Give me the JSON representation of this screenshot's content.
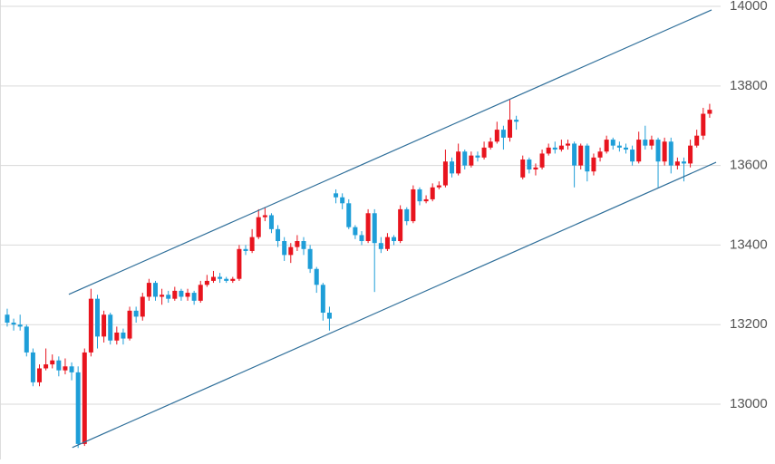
{
  "chart_data": {
    "type": "candlestick",
    "up_color": "#e8141e",
    "down_color": "#1e9ed8",
    "trendline_color": "#2f6f9a",
    "ylim": [
      12861,
      14016
    ],
    "yticks": [
      13000,
      13200,
      13400,
      13600,
      13800,
      14000
    ],
    "grid": true,
    "xlim": [
      -1.12,
      110.7
    ],
    "open": [
      13225,
      13205,
      13200,
      13195,
      13130,
      13055,
      13090,
      13100,
      13110,
      13085,
      13095,
      13080,
      12900,
      13130,
      13265,
      13170,
      13225,
      13160,
      13180,
      13165,
      13235,
      13220,
      13270,
      13305,
      13270,
      13275,
      13265,
      13285,
      13270,
      13280,
      13260,
      13300,
      13310,
      13320,
      13315,
      13310,
      13315,
      13390,
      13385,
      13420,
      13470,
      13475,
      13440,
      13410,
      13375,
      13395,
      13410,
      13390,
      13340,
      13300,
      13230,
      13530,
      13520,
      13505,
      13445,
      13425,
      13410,
      13480,
      13405,
      13390,
      13420,
      13410,
      13490,
      13460,
      13540,
      13510,
      13515,
      13545,
      13550,
      13610,
      13580,
      13635,
      13600,
      13625,
      13620,
      13645,
      13660,
      13690,
      13670,
      13715,
      13570,
      13615,
      13590,
      13595,
      13630,
      13645,
      13640,
      13650,
      13655,
      13600,
      13650,
      13585,
      13620,
      13635,
      13665,
      13650,
      13645,
      13640,
      13610,
      13665,
      13650,
      13665,
      13610,
      13660,
      13600,
      13610,
      13605,
      13650,
      13675,
      13730
    ],
    "high": [
      13240,
      13215,
      13225,
      13200,
      13140,
      13100,
      13140,
      13125,
      13120,
      13115,
      13105,
      13095,
      13140,
      13290,
      13275,
      13235,
      13230,
      13195,
      13190,
      13245,
      13245,
      13280,
      13315,
      13310,
      13290,
      13285,
      13295,
      13290,
      13290,
      13285,
      13310,
      13325,
      13335,
      13330,
      13320,
      13320,
      13400,
      13400,
      13440,
      13490,
      13495,
      13480,
      13450,
      13420,
      13405,
      13425,
      13420,
      13400,
      13345,
      13305,
      13245,
      13540,
      13530,
      13515,
      13450,
      13435,
      13490,
      13490,
      13420,
      13430,
      13425,
      13500,
      13495,
      13550,
      13545,
      13525,
      13555,
      13560,
      13640,
      13620,
      13655,
      13640,
      13635,
      13635,
      13660,
      13670,
      13710,
      13700,
      13765,
      13725,
      13625,
      13620,
      13605,
      13640,
      13655,
      13660,
      13665,
      13665,
      13660,
      13655,
      13655,
      13630,
      13645,
      13675,
      13670,
      13660,
      13655,
      13650,
      13685,
      13700,
      13675,
      13670,
      13670,
      13670,
      13620,
      13620,
      13665,
      13690,
      13745,
      13755
    ],
    "low": [
      13195,
      13185,
      13185,
      13120,
      13045,
      13045,
      13085,
      13090,
      13070,
      13075,
      13060,
      12890,
      12895,
      13120,
      13140,
      13155,
      13150,
      13150,
      13150,
      13160,
      13205,
      13210,
      13260,
      13260,
      13250,
      13255,
      13260,
      13260,
      13260,
      13250,
      13255,
      13295,
      13305,
      13305,
      13305,
      13305,
      13310,
      13375,
      13380,
      13415,
      13460,
      13430,
      13395,
      13360,
      13355,
      13385,
      13375,
      13330,
      13280,
      13210,
      13185,
      13505,
      13490,
      13440,
      13415,
      13400,
      13405,
      13282,
      13380,
      13385,
      13400,
      13405,
      13450,
      13455,
      13500,
      13505,
      13510,
      13540,
      13545,
      13570,
      13575,
      13590,
      13595,
      13610,
      13615,
      13640,
      13655,
      13640,
      13660,
      13690,
      13565,
      13580,
      13575,
      13590,
      13625,
      13630,
      13635,
      13640,
      13545,
      13590,
      13560,
      13575,
      13610,
      13630,
      13640,
      13635,
      13630,
      13600,
      13605,
      13640,
      13640,
      13545,
      13600,
      13580,
      13590,
      13560,
      13595,
      13645,
      13665,
      13720
    ],
    "close": [
      13205,
      13200,
      13195,
      13130,
      13055,
      13090,
      13100,
      13110,
      13085,
      13095,
      13080,
      12900,
      13130,
      13265,
      13170,
      13225,
      13160,
      13180,
      13165,
      13235,
      13220,
      13270,
      13305,
      13270,
      13275,
      13265,
      13285,
      13270,
      13280,
      13260,
      13300,
      13310,
      13320,
      13315,
      13310,
      13315,
      13390,
      13385,
      13420,
      13470,
      13475,
      13440,
      13410,
      13375,
      13395,
      13410,
      13390,
      13340,
      13300,
      13230,
      13215,
      13520,
      13505,
      13445,
      13425,
      13410,
      13480,
      13405,
      13390,
      13420,
      13410,
      13490,
      13460,
      13540,
      13510,
      13515,
      13545,
      13550,
      13610,
      13580,
      13635,
      13600,
      13625,
      13620,
      13645,
      13660,
      13690,
      13670,
      13715,
      13710,
      13615,
      13590,
      13595,
      13630,
      13645,
      13640,
      13650,
      13655,
      13600,
      13650,
      13585,
      13620,
      13635,
      13665,
      13650,
      13645,
      13640,
      13610,
      13665,
      13650,
      13665,
      13610,
      13660,
      13600,
      13610,
      13605,
      13650,
      13675,
      13730,
      13740
    ],
    "trendlines": [
      {
        "x": [
          9.56,
          109.3
        ],
        "values": [
          13276,
          13991
        ]
      },
      {
        "x": [
          10.1,
          110.0
        ],
        "values": [
          12891,
          13608
        ]
      }
    ]
  }
}
